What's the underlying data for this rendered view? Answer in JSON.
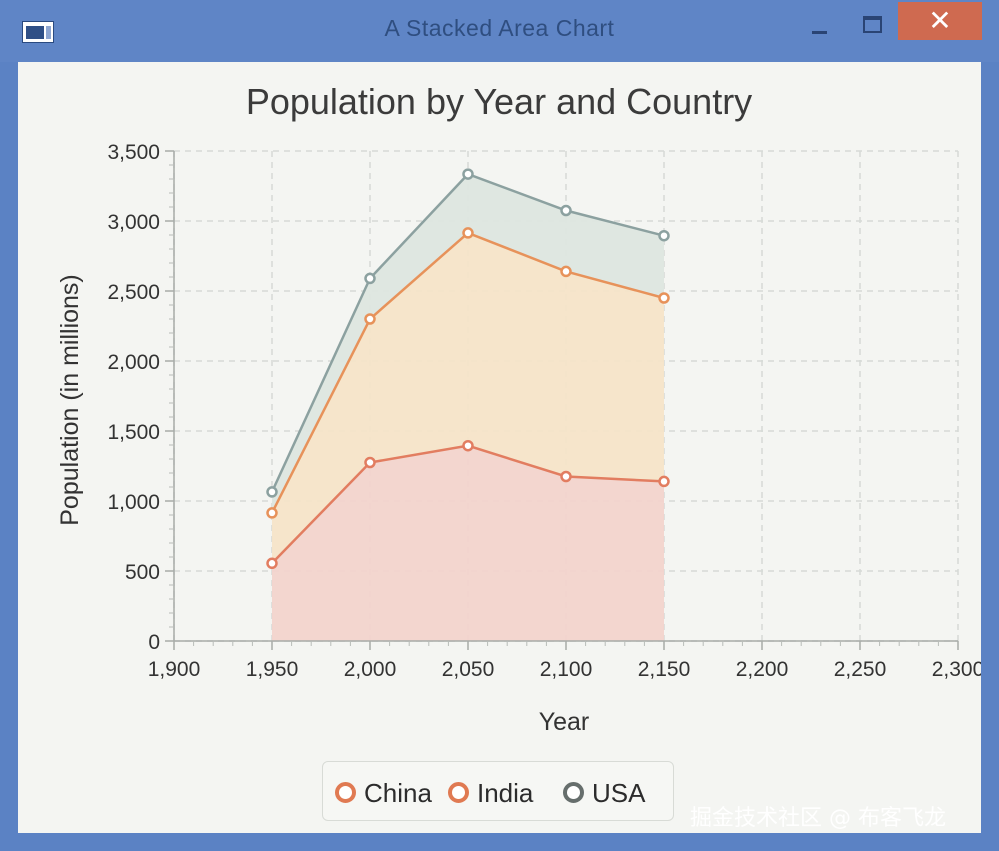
{
  "window": {
    "title": "A Stacked Area Chart",
    "close_glyph": "✕"
  },
  "colors": {
    "china": "#e27d60",
    "india": "#e7925a",
    "usa": "#8ca1a0",
    "china_fill": "#f2d4cc",
    "india_fill": "#f6e4c8",
    "usa_fill": "#dde6df"
  },
  "chart_data": {
    "type": "area",
    "stacked": true,
    "title": "Population by Year and Country",
    "xlabel": "Year",
    "ylabel": "Population (in millions)",
    "xlim": [
      1900,
      2300
    ],
    "ylim": [
      0,
      3500
    ],
    "x_ticks": [
      "1,900",
      "1,950",
      "2,000",
      "2,050",
      "2,100",
      "2,150",
      "2,200",
      "2,250",
      "2,300"
    ],
    "y_ticks": [
      "0",
      "500",
      "1,000",
      "1,500",
      "2,000",
      "2,500",
      "3,000",
      "3,500"
    ],
    "x": [
      1950,
      2000,
      2050,
      2100,
      2150
    ],
    "series": [
      {
        "name": "China",
        "values": [
          555,
          1275,
          1395,
          1175,
          1140
        ]
      },
      {
        "name": "India",
        "values": [
          360,
          1025,
          1520,
          1465,
          1310
        ]
      },
      {
        "name": "USA",
        "values": [
          150,
          290,
          420,
          435,
          445
        ]
      }
    ],
    "grid": true,
    "legend": "bottom"
  },
  "legend": {
    "items": [
      "China",
      "India",
      "USA"
    ]
  },
  "watermark": "掘金技术社区 @ 布客飞龙"
}
